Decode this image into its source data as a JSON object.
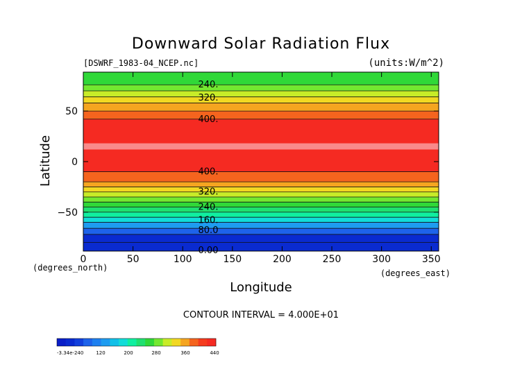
{
  "chart_data": {
    "type": "heatmap",
    "title": "Downward Solar Radiation Flux",
    "source_label": "[DSWRF_1983-04_NCEP.nc]",
    "units_label": "(units:W/m^2)",
    "xlabel": "Longitude",
    "ylabel": "Latitude",
    "x_unit_label": "(degrees_east)",
    "y_unit_label": "(degrees_north)",
    "xlim": [
      0,
      357.5
    ],
    "ylim": [
      -88.5,
      88.5
    ],
    "x_ticks": [
      0,
      50,
      100,
      150,
      200,
      250,
      300,
      350
    ],
    "y_ticks": [
      50,
      0,
      -50
    ],
    "contour_interval_text": "CONTOUR INTERVAL = 4.000E+01",
    "bands": [
      {
        "lat_from": -88.5,
        "lat_to": -72,
        "color": "#0a2bd0"
      },
      {
        "lat_from": -72,
        "lat_to": -66,
        "color": "#1e63ea"
      },
      {
        "lat_from": -66,
        "lat_to": -60,
        "color": "#1e9cf0"
      },
      {
        "lat_from": -60,
        "lat_to": -55,
        "color": "#12dcd8"
      },
      {
        "lat_from": -55,
        "lat_to": -50,
        "color": "#10efa0"
      },
      {
        "lat_from": -50,
        "lat_to": -45,
        "color": "#20e070"
      },
      {
        "lat_from": -45,
        "lat_to": -40,
        "color": "#30d838"
      },
      {
        "lat_from": -40,
        "lat_to": -35,
        "color": "#74e830"
      },
      {
        "lat_from": -35,
        "lat_to": -30,
        "color": "#c8ec28"
      },
      {
        "lat_from": -30,
        "lat_to": -25,
        "color": "#f2d822"
      },
      {
        "lat_from": -25,
        "lat_to": -20,
        "color": "#f5a520"
      },
      {
        "lat_from": -20,
        "lat_to": -10,
        "color": "#f5641e"
      },
      {
        "lat_from": -10,
        "lat_to": 12,
        "color": "#f52a22"
      },
      {
        "lat_from": 12,
        "lat_to": 18,
        "color": "#f98a8a"
      },
      {
        "lat_from": 18,
        "lat_to": 42,
        "color": "#f52a22"
      },
      {
        "lat_from": 42,
        "lat_to": 50,
        "color": "#f5641e"
      },
      {
        "lat_from": 50,
        "lat_to": 58,
        "color": "#f5a520"
      },
      {
        "lat_from": 58,
        "lat_to": 64,
        "color": "#f2d822"
      },
      {
        "lat_from": 64,
        "lat_to": 70,
        "color": "#c8ec28"
      },
      {
        "lat_from": 70,
        "lat_to": 76,
        "color": "#74e830"
      },
      {
        "lat_from": 76,
        "lat_to": 88.5,
        "color": "#30d838"
      }
    ],
    "contour_lines": [
      -80,
      -72,
      -66,
      -60,
      -55,
      -50,
      -45,
      -40,
      -35,
      -30,
      -25,
      -20,
      -10,
      42,
      50,
      58,
      64,
      70,
      76
    ],
    "contour_labels": [
      {
        "text": "240.",
        "lat": 76
      },
      {
        "text": "320.",
        "lat": 63
      },
      {
        "text": "400.",
        "lat": 42
      },
      {
        "text": "400.",
        "lat": -10
      },
      {
        "text": "320.",
        "lat": -30
      },
      {
        "text": "240.",
        "lat": -45
      },
      {
        "text": "160.",
        "lat": -58
      },
      {
        "text": "80.0",
        "lat": -68
      },
      {
        "text": "0.00",
        "lat": -92
      }
    ],
    "colorbar": {
      "colors": [
        "#0a1ec8",
        "#0a2bd0",
        "#1240dc",
        "#1e63ea",
        "#1e80f0",
        "#1e9cf0",
        "#12c0e8",
        "#12dcd8",
        "#10efa0",
        "#20e070",
        "#30d838",
        "#74e830",
        "#c8ec28",
        "#f2d822",
        "#f5a520",
        "#f5641e",
        "#f53c1e",
        "#f52a22"
      ],
      "labels": [
        "-3.34e-240",
        "120",
        "200",
        "280",
        "360",
        "440"
      ]
    }
  }
}
